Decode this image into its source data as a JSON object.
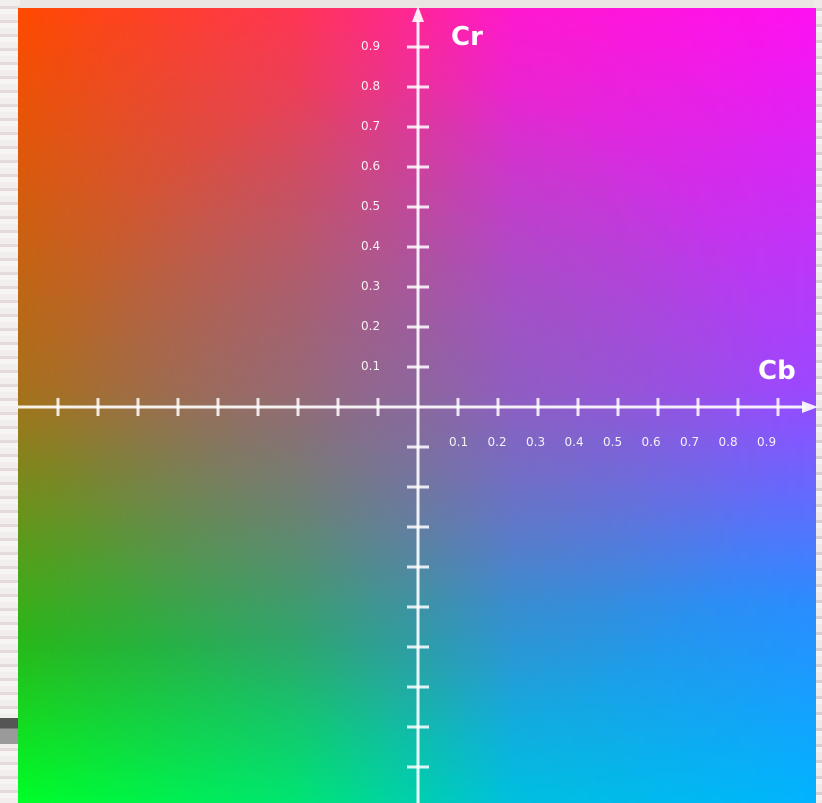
{
  "diagram": {
    "axes": {
      "horizontal": {
        "label": "Cb",
        "tick_labels": [
          "0.1",
          "0.2",
          "0.3",
          "0.4",
          "0.5",
          "0.6",
          "0.7",
          "0.8",
          "0.9"
        ]
      },
      "vertical": {
        "label": "Cr",
        "tick_labels": [
          "0.1",
          "0.2",
          "0.3",
          "0.4",
          "0.5",
          "0.6",
          "0.7",
          "0.8",
          "0.9"
        ]
      }
    },
    "colors": {
      "top_left": "#ff4a00",
      "top_right": "#ff10f2",
      "bottom_left": "#00ff28",
      "bottom_right": "#00b4ff",
      "axis": "#ffffff"
    }
  }
}
